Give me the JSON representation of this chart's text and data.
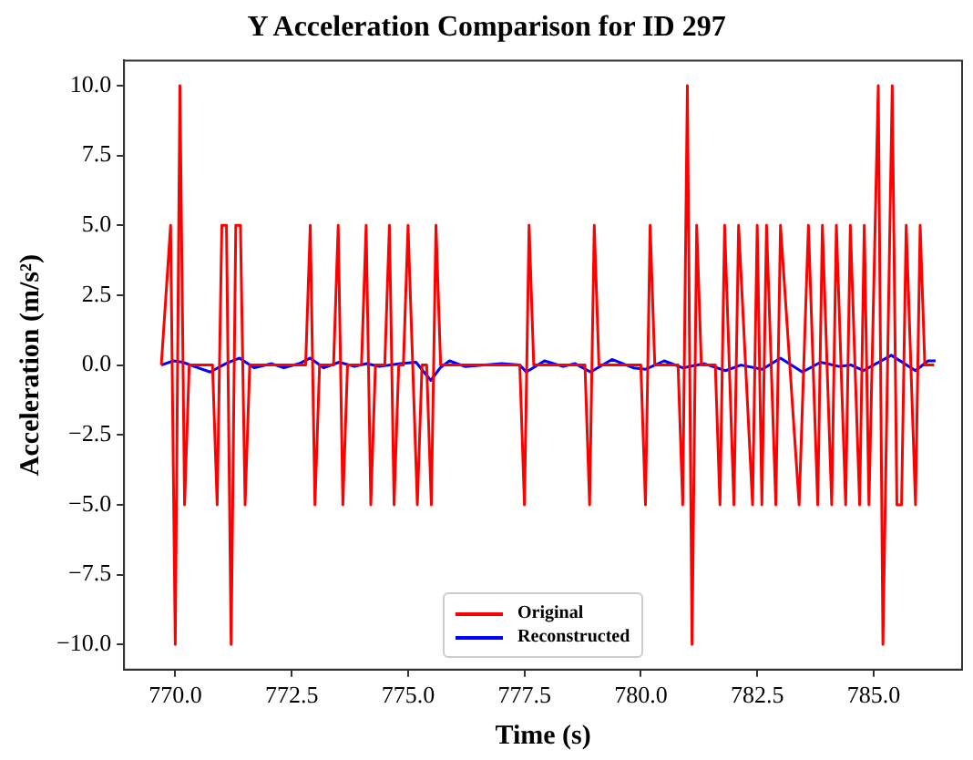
{
  "chart_data": {
    "type": "line",
    "title": "Y Acceleration Comparison for ID 297",
    "xlabel": "Time (s)",
    "ylabel": "Acceleration (m/s²)",
    "xlim": [
      768.9,
      786.9
    ],
    "ylim": [
      -10.9,
      10.9
    ],
    "xticks": [
      {
        "value": 770,
        "label": "770.0"
      },
      {
        "value": 772.5,
        "label": "772.5"
      },
      {
        "value": 775,
        "label": "775.0"
      },
      {
        "value": 777.5,
        "label": "777.5"
      },
      {
        "value": 780,
        "label": "780.0"
      },
      {
        "value": 782.5,
        "label": "782.5"
      },
      {
        "value": 785,
        "label": "785.0"
      }
    ],
    "yticks": [
      {
        "value": -10,
        "label": "−10.0"
      },
      {
        "value": -7.5,
        "label": "−7.5"
      },
      {
        "value": -5,
        "label": "−5.0"
      },
      {
        "value": -2.5,
        "label": "−2.5"
      },
      {
        "value": 0,
        "label": "0.0"
      },
      {
        "value": 2.5,
        "label": "2.5"
      },
      {
        "value": 5,
        "label": "5.0"
      },
      {
        "value": 7.5,
        "label": "7.5"
      },
      {
        "value": 10,
        "label": "10.0"
      }
    ],
    "grid": false,
    "legend": "bottom",
    "marker": "none",
    "line_style": "solid",
    "series": [
      {
        "name": "Original",
        "color": "#ff0000",
        "x": [
          769.7,
          769.9,
          770.0,
          770.1,
          770.2,
          770.3,
          770.8,
          770.9,
          771.0,
          771.1,
          771.2,
          771.3,
          771.4,
          771.5,
          771.6,
          772.8,
          772.9,
          773.0,
          773.1,
          773.4,
          773.5,
          773.6,
          773.7,
          774.0,
          774.1,
          774.2,
          774.3,
          774.5,
          774.6,
          774.7,
          774.8,
          774.9,
          775.0,
          775.2,
          775.3,
          775.4,
          775.5,
          775.6,
          775.7,
          777.4,
          777.5,
          777.6,
          777.7,
          778.8,
          778.9,
          779.0,
          779.1,
          780.0,
          780.1,
          780.2,
          780.3,
          780.8,
          780.9,
          781.0,
          781.1,
          781.2,
          781.3,
          781.6,
          781.7,
          781.8,
          782.0,
          782.1,
          782.4,
          782.5,
          782.6,
          782.7,
          782.9,
          783.0,
          783.4,
          783.6,
          783.8,
          783.9,
          784.1,
          784.2,
          784.4,
          784.5,
          784.7,
          784.8,
          784.9,
          785.1,
          785.2,
          785.4,
          785.5,
          785.6,
          785.7,
          785.9,
          786.0,
          786.1,
          786.3
        ],
        "values": [
          0,
          5,
          -10,
          10,
          -5,
          0,
          0,
          -5,
          5,
          5,
          -10,
          5,
          5,
          -5,
          0,
          0,
          5,
          -5,
          0,
          0,
          5,
          -5,
          0,
          0,
          5,
          -5,
          0,
          0,
          5,
          -5,
          0,
          0,
          5,
          -5,
          0,
          0,
          -5,
          5,
          0,
          0,
          -5,
          5,
          0,
          0,
          -5,
          5,
          0,
          0,
          -5,
          5,
          0,
          0,
          -5,
          10,
          -10,
          5,
          0,
          0,
          -5,
          5,
          -5,
          5,
          -5,
          5,
          -5,
          5,
          -5,
          5,
          -5,
          5,
          -5,
          5,
          -5,
          5,
          -5,
          5,
          -5,
          5,
          -5,
          10,
          -10,
          10,
          -5,
          -5,
          5,
          -5,
          5,
          0,
          0
        ]
      },
      {
        "name": "Reconstructed",
        "color": "#0000ff",
        "x": [
          769.7,
          769.96,
          770.16,
          770.49,
          770.75,
          771.08,
          771.38,
          771.7,
          772.07,
          772.33,
          772.66,
          772.9,
          773.19,
          773.52,
          773.85,
          774.11,
          774.38,
          774.84,
          775.17,
          775.49,
          775.69,
          775.89,
          776.22,
          777.01,
          777.4,
          777.54,
          777.93,
          778.33,
          778.59,
          778.92,
          779.38,
          779.84,
          780.11,
          780.5,
          780.9,
          781.36,
          781.82,
          782.15,
          782.61,
          783.0,
          783.47,
          783.86,
          784.26,
          784.52,
          784.78,
          785.38,
          785.9,
          786.17,
          786.33
        ],
        "values": [
          0,
          0.15,
          0.1,
          -0.1,
          -0.25,
          0.05,
          0.25,
          -0.1,
          0.05,
          -0.1,
          0.05,
          0.25,
          -0.1,
          0.1,
          -0.05,
          0.05,
          -0.05,
          0.05,
          0.1,
          -0.55,
          -0.1,
          0.15,
          -0.05,
          0.05,
          0,
          -0.25,
          0.15,
          -0.05,
          0.05,
          -0.25,
          0.2,
          -0.1,
          -0.15,
          0.15,
          -0.1,
          0.05,
          -0.2,
          0,
          -0.15,
          0.25,
          -0.25,
          0.1,
          -0.05,
          0,
          -0.2,
          0.35,
          -0.2,
          0.15,
          0.15
        ]
      }
    ]
  }
}
